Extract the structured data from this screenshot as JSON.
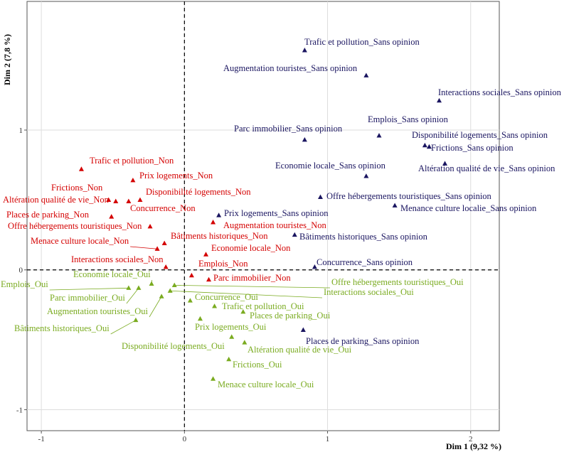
{
  "chart_data": {
    "type": "scatter",
    "title": "",
    "xlabel": "Dim 1 (9,32 %)",
    "ylabel": "Dim 2 (7,8 %)",
    "xlim": [
      -1.1,
      2.2
    ],
    "ylim": [
      -1.15,
      1.92
    ],
    "x_ticks": [
      -1,
      0,
      1,
      2
    ],
    "y_ticks": [
      -1,
      0,
      1
    ],
    "x_tick_labels": [
      "-1",
      "0",
      "1",
      "2"
    ],
    "y_tick_labels": [
      "-1",
      "0",
      "1"
    ],
    "grid": true,
    "reference_lines": [
      0
    ],
    "series": [
      {
        "color": "#1a1560",
        "points": [
          {
            "label": "Trafic et pollution_Sans opinion",
            "x": 0.84,
            "y": 1.57
          },
          {
            "label": "Augmentation touristes_Sans opinion",
            "x": 1.27,
            "y": 1.39
          },
          {
            "label": "Interactions sociales_Sans opinion",
            "x": 1.78,
            "y": 1.21
          },
          {
            "label": "Emplois_Sans opinion",
            "x": 1.36,
            "y": 0.96
          },
          {
            "label": "Parc immobilier_Sans opinion",
            "x": 0.84,
            "y": 0.93
          },
          {
            "label": "Disponibilité logements_Sans opinion",
            "x": 1.68,
            "y": 0.89
          },
          {
            "label": "Frictions_Sans opinion",
            "x": 1.71,
            "y": 0.88
          },
          {
            "label": "Economie locale_Sans opinion",
            "x": 1.27,
            "y": 0.67
          },
          {
            "label": "Altération qualité de vie_Sans opinion",
            "x": 1.82,
            "y": 0.76
          },
          {
            "label": "Offre hébergements touristiques_Sans opinion",
            "x": 0.95,
            "y": 0.52
          },
          {
            "label": "Menance culture localie_Sans opinion",
            "x": 1.47,
            "y": 0.46
          },
          {
            "label": "Prix logements_Sans opinion",
            "x": 0.24,
            "y": 0.39
          },
          {
            "label": "Bâtiments historiques_Sans opinion",
            "x": 0.77,
            "y": 0.25
          },
          {
            "label": "Concurrence_Sans opinion",
            "x": 0.91,
            "y": 0.02
          },
          {
            "label": "Places de parking_Sans opinion",
            "x": 0.83,
            "y": -0.43
          }
        ]
      },
      {
        "color": "#d40000",
        "points": [
          {
            "label": "Trafic et pollution_Non",
            "x": -0.72,
            "y": 0.72
          },
          {
            "label": "Prix logements_Non",
            "x": -0.36,
            "y": 0.64
          },
          {
            "label": "Frictions_Non",
            "x": -0.53,
            "y": 0.5
          },
          {
            "label": "Altération qualité de vie_Non",
            "x": -0.48,
            "y": 0.49
          },
          {
            "label": "Disponibilité logements_Non",
            "x": -0.31,
            "y": 0.5
          },
          {
            "label": "Concurrence_Non",
            "x": -0.39,
            "y": 0.49
          },
          {
            "label": "Places de parking_Non",
            "x": -0.51,
            "y": 0.38
          },
          {
            "label": "Offre hébergements touristiques_Non",
            "x": -0.24,
            "y": 0.31
          },
          {
            "label": "Menace culture locale_Non",
            "x": -0.19,
            "y": 0.15
          },
          {
            "label": "Bâtiments historiques_Non",
            "x": -0.14,
            "y": 0.19
          },
          {
            "label": "Augmentation touristes_Non",
            "x": 0.2,
            "y": 0.34
          },
          {
            "label": "Economie locale_Non",
            "x": 0.15,
            "y": 0.11
          },
          {
            "label": "Interactions sociales_Non",
            "x": -0.13,
            "y": 0.02
          },
          {
            "label": "Emplois_Non",
            "x": 0.05,
            "y": -0.04
          },
          {
            "label": "Parc immobilier_Non",
            "x": 0.17,
            "y": -0.07
          }
        ]
      },
      {
        "color": "#7aab20",
        "points": [
          {
            "label": "Economie locale_Oui",
            "x": -0.23,
            "y": -0.1
          },
          {
            "label": "Emplois_Oui",
            "x": -0.39,
            "y": -0.13
          },
          {
            "label": "Parc immobilier_Oui",
            "x": -0.32,
            "y": -0.13
          },
          {
            "label": "Augmentation touristes_Oui",
            "x": -0.16,
            "y": -0.19
          },
          {
            "label": "Bâtiments historiques_Oui",
            "x": -0.34,
            "y": -0.36
          },
          {
            "label": "Offre hébergements touristiques_Oui",
            "x": -0.07,
            "y": -0.11
          },
          {
            "label": "Interactions sociales_Oui",
            "x": -0.1,
            "y": -0.15
          },
          {
            "label": "Concurrence_Oui",
            "x": 0.04,
            "y": -0.22
          },
          {
            "label": "Trafic et pollution_Oui",
            "x": 0.21,
            "y": -0.26
          },
          {
            "label": "Places de parking_Oui",
            "x": 0.41,
            "y": -0.3
          },
          {
            "label": "Prix logements_Oui",
            "x": 0.11,
            "y": -0.35
          },
          {
            "label": "Disponibilité logements_Oui",
            "x": 0.33,
            "y": -0.48
          },
          {
            "label": "Altération qualité de vie_Oui",
            "x": 0.42,
            "y": -0.52
          },
          {
            "label": "Frictions_Oui",
            "x": 0.31,
            "y": -0.64
          },
          {
            "label": "Menace culture locale_Oui",
            "x": 0.2,
            "y": -0.78
          }
        ]
      }
    ]
  }
}
